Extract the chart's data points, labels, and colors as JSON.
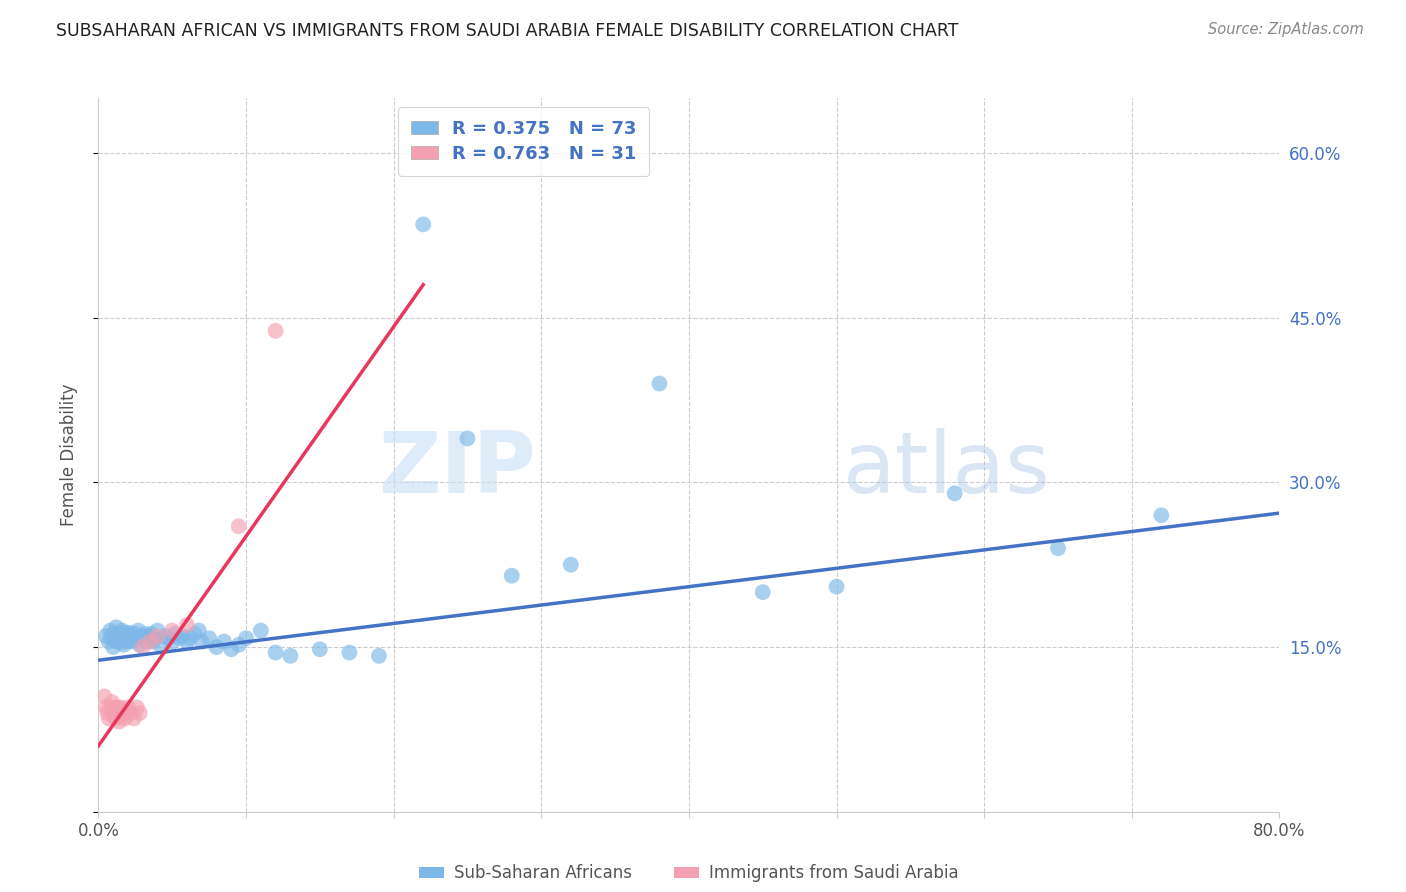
{
  "title": "SUBSAHARAN AFRICAN VS IMMIGRANTS FROM SAUDI ARABIA FEMALE DISABILITY CORRELATION CHART",
  "source": "Source: ZipAtlas.com",
  "ylabel": "Female Disability",
  "xlim": [
    0.0,
    0.8
  ],
  "ylim": [
    0.0,
    0.65
  ],
  "xticks": [
    0.0,
    0.1,
    0.2,
    0.3,
    0.4,
    0.5,
    0.6,
    0.7,
    0.8
  ],
  "xticklabels": [
    "0.0%",
    "",
    "",
    "",
    "",
    "",
    "",
    "",
    "80.0%"
  ],
  "yticks": [
    0.0,
    0.15,
    0.3,
    0.45,
    0.6
  ],
  "yticklabels_right": [
    "",
    "15.0%",
    "30.0%",
    "45.0%",
    "60.0%"
  ],
  "grid_color": "#cccccc",
  "background_color": "#ffffff",
  "blue_color": "#7db8e8",
  "pink_color": "#f4a0b0",
  "blue_line_color": "#4472c4",
  "pink_line_color": "#e8365d",
  "r_blue": 0.375,
  "n_blue": 73,
  "r_pink": 0.763,
  "n_pink": 31,
  "legend_label_blue": "Sub-Saharan Africans",
  "legend_label_pink": "Immigrants from Saudi Arabia",
  "watermark_zip": "ZIP",
  "watermark_atlas": "atlas",
  "blue_line_x0": 0.0,
  "blue_line_y0": 0.138,
  "blue_line_x1": 0.8,
  "blue_line_y1": 0.272,
  "pink_line_x0": 0.0,
  "pink_line_y0": 0.06,
  "pink_line_x1": 0.22,
  "pink_line_y1": 0.48,
  "blue_scatter_x": [
    0.005,
    0.007,
    0.008,
    0.009,
    0.01,
    0.01,
    0.012,
    0.012,
    0.013,
    0.014,
    0.015,
    0.015,
    0.016,
    0.016,
    0.017,
    0.018,
    0.018,
    0.019,
    0.02,
    0.02,
    0.021,
    0.022,
    0.022,
    0.023,
    0.024,
    0.025,
    0.026,
    0.027,
    0.028,
    0.03,
    0.031,
    0.032,
    0.033,
    0.034,
    0.035,
    0.036,
    0.037,
    0.038,
    0.04,
    0.042,
    0.045,
    0.047,
    0.05,
    0.052,
    0.055,
    0.057,
    0.06,
    0.062,
    0.065,
    0.068,
    0.07,
    0.075,
    0.08,
    0.085,
    0.09,
    0.095,
    0.1,
    0.11,
    0.12,
    0.13,
    0.15,
    0.17,
    0.19,
    0.22,
    0.25,
    0.28,
    0.32,
    0.38,
    0.45,
    0.5,
    0.58,
    0.65,
    0.72
  ],
  "blue_scatter_y": [
    0.16,
    0.155,
    0.165,
    0.158,
    0.162,
    0.15,
    0.168,
    0.155,
    0.162,
    0.158,
    0.154,
    0.16,
    0.157,
    0.165,
    0.152,
    0.159,
    0.163,
    0.156,
    0.161,
    0.155,
    0.158,
    0.163,
    0.155,
    0.16,
    0.157,
    0.162,
    0.158,
    0.165,
    0.152,
    0.16,
    0.158,
    0.162,
    0.155,
    0.16,
    0.158,
    0.162,
    0.155,
    0.158,
    0.165,
    0.152,
    0.16,
    0.158,
    0.155,
    0.162,
    0.158,
    0.16,
    0.155,
    0.158,
    0.162,
    0.165,
    0.155,
    0.158,
    0.15,
    0.155,
    0.148,
    0.152,
    0.158,
    0.165,
    0.145,
    0.142,
    0.148,
    0.145,
    0.142,
    0.535,
    0.34,
    0.215,
    0.225,
    0.39,
    0.2,
    0.205,
    0.29,
    0.24,
    0.27
  ],
  "pink_scatter_x": [
    0.004,
    0.005,
    0.006,
    0.007,
    0.008,
    0.009,
    0.01,
    0.01,
    0.011,
    0.012,
    0.012,
    0.013,
    0.014,
    0.015,
    0.015,
    0.016,
    0.017,
    0.018,
    0.019,
    0.02,
    0.022,
    0.024,
    0.026,
    0.028,
    0.03,
    0.035,
    0.04,
    0.05,
    0.06,
    0.095,
    0.12
  ],
  "pink_scatter_y": [
    0.105,
    0.095,
    0.09,
    0.085,
    0.095,
    0.1,
    0.088,
    0.092,
    0.095,
    0.085,
    0.09,
    0.095,
    0.082,
    0.09,
    0.095,
    0.088,
    0.092,
    0.085,
    0.09,
    0.095,
    0.09,
    0.085,
    0.095,
    0.09,
    0.15,
    0.155,
    0.16,
    0.165,
    0.17,
    0.26,
    0.438
  ]
}
